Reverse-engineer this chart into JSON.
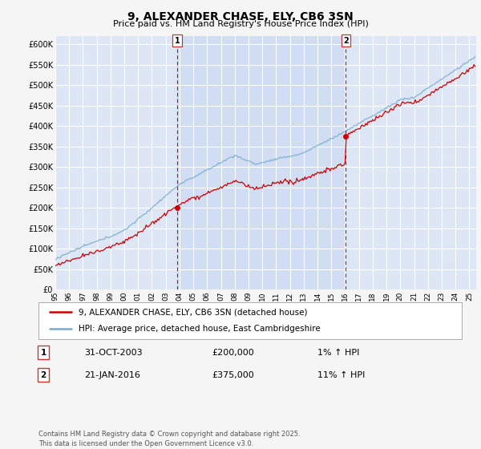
{
  "title": "9, ALEXANDER CHASE, ELY, CB6 3SN",
  "subtitle": "Price paid vs. HM Land Registry's House Price Index (HPI)",
  "ylim": [
    0,
    620000
  ],
  "yticks": [
    0,
    50000,
    100000,
    150000,
    200000,
    250000,
    300000,
    350000,
    400000,
    450000,
    500000,
    550000,
    600000
  ],
  "x_start_year": 1995,
  "x_end_year": 2025.5,
  "sale1_year": 2003.83,
  "sale1_price": 200000,
  "sale2_year": 2016.05,
  "sale2_price": 375000,
  "legend_line1": "9, ALEXANDER CHASE, ELY, CB6 3SN (detached house)",
  "legend_line2": "HPI: Average price, detached house, East Cambridgeshire",
  "annotation1_date": "31-OCT-2003",
  "annotation1_price": "£200,000",
  "annotation1_hpi": "1% ↑ HPI",
  "annotation2_date": "21-JAN-2016",
  "annotation2_price": "£375,000",
  "annotation2_hpi": "11% ↑ HPI",
  "footer": "Contains HM Land Registry data © Crown copyright and database right 2025.\nThis data is licensed under the Open Government Licence v3.0.",
  "bg_color": "#f5f5f5",
  "plot_bg_color": "#dce6f5",
  "highlight_color": "#c8d8f0",
  "grid_color": "#ffffff",
  "red_color": "#cc0000",
  "blue_color": "#7aadcf"
}
